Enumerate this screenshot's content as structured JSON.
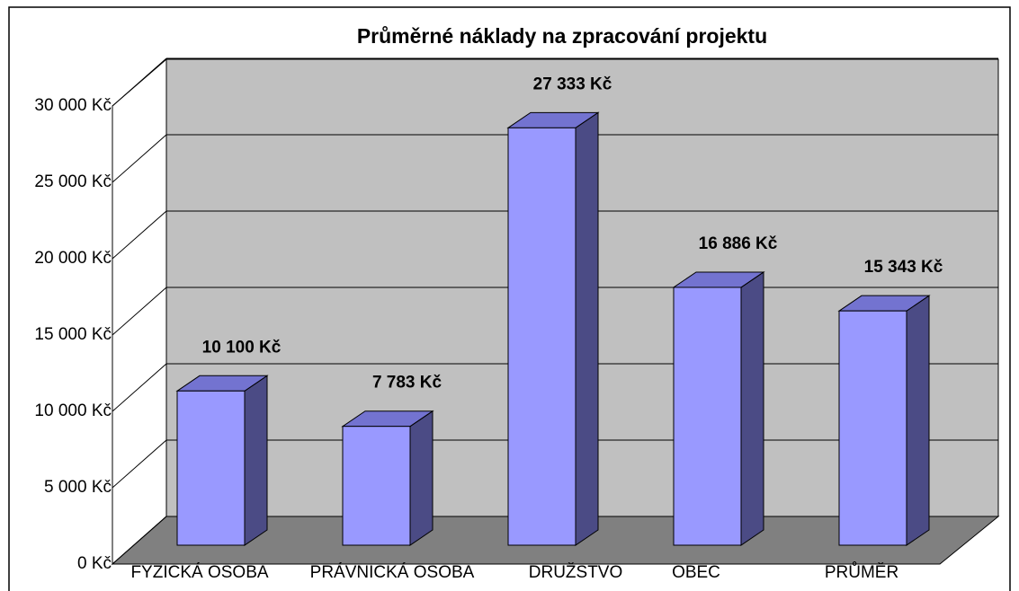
{
  "chart_data": {
    "type": "bar3d",
    "title": "Průměrné náklady na zpracování projektu",
    "categories": [
      "FYZICKÁ OSOBA",
      "PRÁVNICKÁ OSOBA",
      "DRUŽSTVO",
      "OBEC",
      "PRŮMĚR"
    ],
    "values": [
      10100,
      7783,
      27333,
      16886,
      15343
    ],
    "value_labels": [
      "10 100 Kč",
      "7 783 Kč",
      "27 333 Kč",
      "16 886 Kč",
      "15 343 Kč"
    ],
    "color": "#9999ff",
    "ylim": [
      0,
      30000
    ],
    "yticks": [
      {
        "value": 0,
        "label": "0 Kč"
      },
      {
        "value": 5000,
        "label": "5 000 Kč"
      },
      {
        "value": 10000,
        "label": "10 000 Kč"
      },
      {
        "value": 15000,
        "label": "15 000 Kč"
      },
      {
        "value": 20000,
        "label": "20 000 Kč"
      },
      {
        "value": 25000,
        "label": "25 000 Kč"
      },
      {
        "value": 30000,
        "label": "30 000 Kč"
      }
    ],
    "grid": true
  }
}
